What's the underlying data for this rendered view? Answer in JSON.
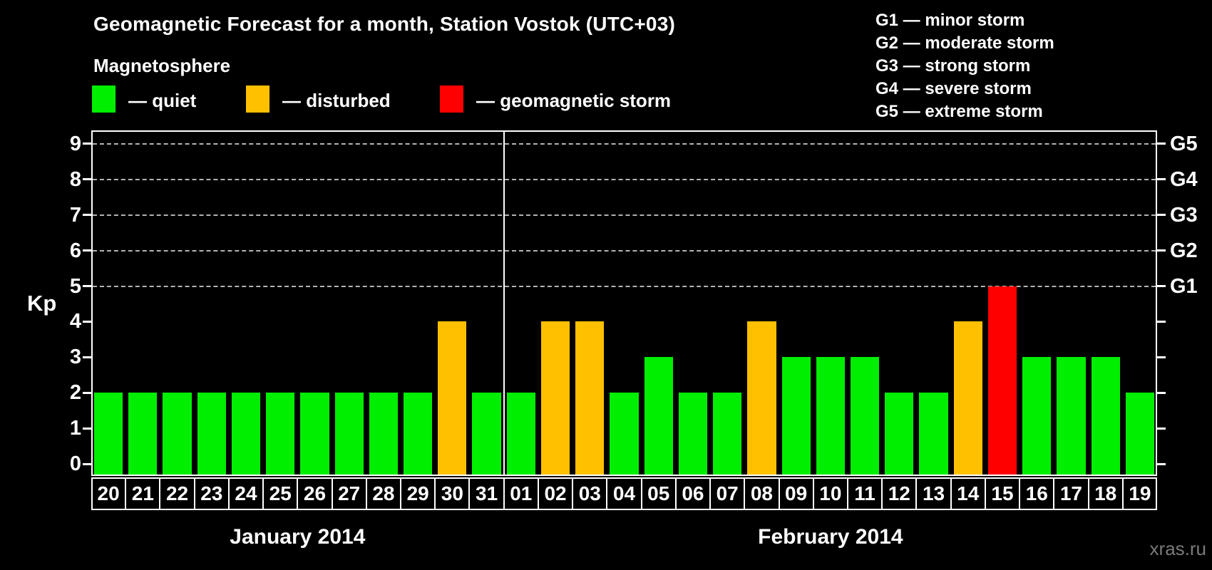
{
  "title": "Geomagnetic Forecast for a month, Station Vostok (UTC+03)",
  "legend": {
    "heading": "Magnetosphere",
    "items": [
      {
        "label": "— quiet",
        "status": "quiet",
        "color": "#00ee00"
      },
      {
        "label": "— disturbed",
        "status": "disturbed",
        "color": "#ffc000"
      },
      {
        "label": "— geomagnetic storm",
        "status": "storm",
        "color": "#ff0000"
      }
    ]
  },
  "g_scale_legend": [
    "G1 — minor storm",
    "G2 — moderate storm",
    "G3 — strong storm",
    "G4 — severe storm",
    "G5 — extreme storm"
  ],
  "watermark": "xras.ru",
  "chart_data": {
    "type": "bar",
    "title": "Geomagnetic Forecast for a month, Station Vostok (UTC+03)",
    "ylabel": "Kp",
    "ylim": [
      0,
      9
    ],
    "yticks": [
      0,
      1,
      2,
      3,
      4,
      5,
      6,
      7,
      8,
      9
    ],
    "grid_values": [
      5,
      6,
      7,
      8,
      9
    ],
    "right_axis": [
      {
        "value": 5,
        "label": "G1"
      },
      {
        "value": 6,
        "label": "G2"
      },
      {
        "value": 7,
        "label": "G3"
      },
      {
        "value": 8,
        "label": "G4"
      },
      {
        "value": 9,
        "label": "G5"
      }
    ],
    "colors": {
      "quiet": "#00ee00",
      "disturbed": "#ffc000",
      "storm": "#ff0000"
    },
    "groups": [
      {
        "label": "January 2014",
        "bars": [
          {
            "day": "20",
            "kp": 2,
            "status": "quiet"
          },
          {
            "day": "21",
            "kp": 2,
            "status": "quiet"
          },
          {
            "day": "22",
            "kp": 2,
            "status": "quiet"
          },
          {
            "day": "23",
            "kp": 2,
            "status": "quiet"
          },
          {
            "day": "24",
            "kp": 2,
            "status": "quiet"
          },
          {
            "day": "25",
            "kp": 2,
            "status": "quiet"
          },
          {
            "day": "26",
            "kp": 2,
            "status": "quiet"
          },
          {
            "day": "27",
            "kp": 2,
            "status": "quiet"
          },
          {
            "day": "28",
            "kp": 2,
            "status": "quiet"
          },
          {
            "day": "29",
            "kp": 2,
            "status": "quiet"
          },
          {
            "day": "30",
            "kp": 4,
            "status": "disturbed"
          },
          {
            "day": "31",
            "kp": 2,
            "status": "quiet"
          }
        ]
      },
      {
        "label": "February 2014",
        "bars": [
          {
            "day": "01",
            "kp": 2,
            "status": "quiet"
          },
          {
            "day": "02",
            "kp": 4,
            "status": "disturbed"
          },
          {
            "day": "03",
            "kp": 4,
            "status": "disturbed"
          },
          {
            "day": "04",
            "kp": 2,
            "status": "quiet"
          },
          {
            "day": "05",
            "kp": 3,
            "status": "quiet"
          },
          {
            "day": "06",
            "kp": 2,
            "status": "quiet"
          },
          {
            "day": "07",
            "kp": 2,
            "status": "quiet"
          },
          {
            "day": "08",
            "kp": 4,
            "status": "disturbed"
          },
          {
            "day": "09",
            "kp": 3,
            "status": "quiet"
          },
          {
            "day": "10",
            "kp": 3,
            "status": "quiet"
          },
          {
            "day": "11",
            "kp": 3,
            "status": "quiet"
          },
          {
            "day": "12",
            "kp": 2,
            "status": "quiet"
          },
          {
            "day": "13",
            "kp": 2,
            "status": "quiet"
          },
          {
            "day": "14",
            "kp": 4,
            "status": "disturbed"
          },
          {
            "day": "15",
            "kp": 5,
            "status": "storm"
          },
          {
            "day": "16",
            "kp": 3,
            "status": "quiet"
          },
          {
            "day": "17",
            "kp": 3,
            "status": "quiet"
          },
          {
            "day": "18",
            "kp": 3,
            "status": "quiet"
          },
          {
            "day": "19",
            "kp": 2,
            "status": "quiet"
          }
        ]
      }
    ]
  }
}
